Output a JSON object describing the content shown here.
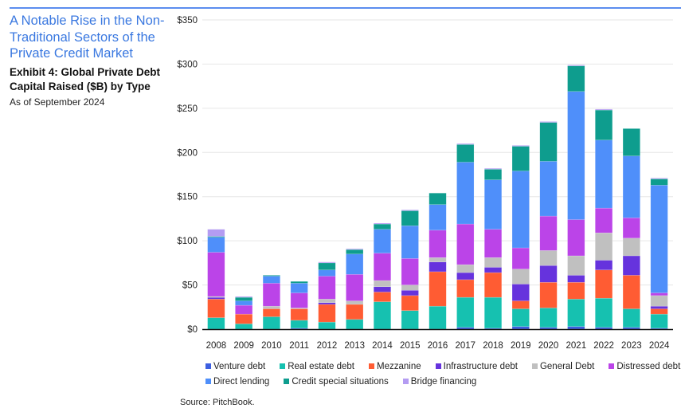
{
  "header": {
    "headline": "A Notable Rise in the Non-Traditional Sectors of the Private Credit Market",
    "exhibit_title": "Exhibit 4: Global Private Debt Capital Raised ($B) by Type",
    "as_of": "As of September 2024"
  },
  "source": "Source: PitchBook.",
  "chart_data": {
    "type": "bar",
    "stacked": true,
    "title": "Exhibit 4: Global Private Debt Capital Raised ($B) by Type",
    "xlabel": "",
    "ylabel": "",
    "ylim": [
      0,
      350
    ],
    "yticks": [
      0,
      50,
      100,
      150,
      200,
      250,
      300,
      350
    ],
    "ytick_labels": [
      "$0",
      "$50",
      "$100",
      "$150",
      "$200",
      "$250",
      "$300",
      "$350"
    ],
    "grid": true,
    "legend_position": "bottom",
    "categories": [
      "2008",
      "2009",
      "2010",
      "2011",
      "2012",
      "2013",
      "2014",
      "2015",
      "2016",
      "2017",
      "2018",
      "2019",
      "2020",
      "2021",
      "2022",
      "2023",
      "2024"
    ],
    "series": [
      {
        "name": "Venture debt",
        "color": "#3d5fe0",
        "values": [
          0,
          0,
          0,
          1,
          0,
          0,
          0,
          0,
          0,
          2,
          1,
          3,
          2,
          3,
          2,
          2,
          1
        ]
      },
      {
        "name": "Real estate debt",
        "color": "#16c1b0",
        "values": [
          13,
          6,
          14,
          9,
          8,
          11,
          31,
          21,
          26,
          34,
          35,
          20,
          22,
          31,
          33,
          21,
          16
        ]
      },
      {
        "name": "Mezzanine",
        "color": "#ff5c33",
        "values": [
          21,
          11,
          9,
          13,
          20,
          17,
          11,
          17,
          39,
          20,
          28,
          9,
          29,
          19,
          32,
          38,
          6
        ]
      },
      {
        "name": "Infrastructure debt",
        "color": "#6633dd",
        "values": [
          2,
          0,
          0,
          0,
          2,
          0,
          6,
          6,
          11,
          8,
          6,
          19,
          19,
          8,
          11,
          22,
          3
        ]
      },
      {
        "name": "General Debt",
        "color": "#c0c0c0",
        "values": [
          1,
          0,
          3,
          1,
          4,
          4,
          7,
          6,
          5,
          9,
          11,
          17,
          17,
          22,
          31,
          20,
          12
        ]
      },
      {
        "name": "Distressed debt",
        "color": "#bb44e8",
        "values": [
          50,
          10,
          26,
          17,
          26,
          30,
          31,
          30,
          31,
          46,
          32,
          24,
          39,
          41,
          28,
          23,
          3
        ]
      },
      {
        "name": "Direct lending",
        "color": "#4f8ffa",
        "values": [
          17,
          5,
          8,
          11,
          7,
          23,
          27,
          37,
          29,
          70,
          56,
          87,
          62,
          145,
          77,
          70,
          122
        ]
      },
      {
        "name": "Credit special situations",
        "color": "#0e9d8e",
        "values": [
          1,
          4,
          1,
          2,
          8,
          5,
          6,
          17,
          13,
          20,
          12,
          28,
          44,
          29,
          34,
          31,
          7
        ]
      },
      {
        "name": "Bridge financing",
        "color": "#b49cf2",
        "values": [
          8,
          1,
          0,
          0,
          1,
          1,
          1,
          1,
          0,
          1,
          1,
          1,
          1,
          1,
          1,
          0,
          1
        ]
      }
    ]
  }
}
